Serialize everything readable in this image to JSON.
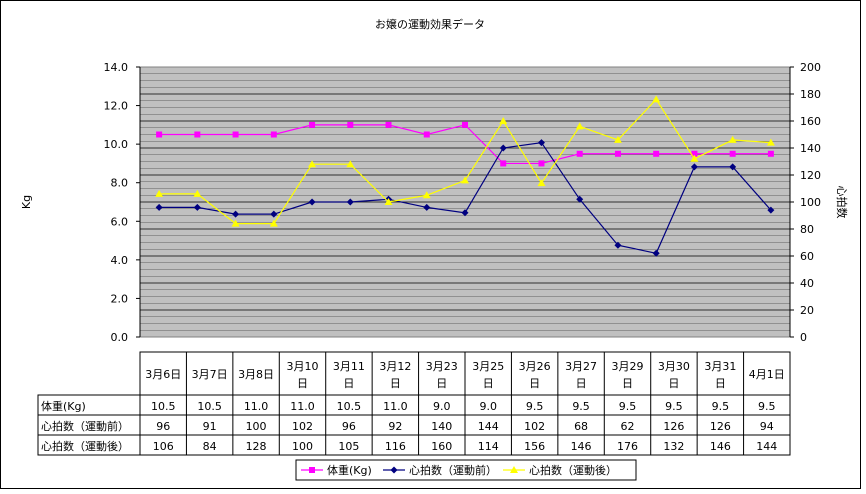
{
  "chart_data": {
    "type": "line",
    "title": "お嬢の運動効果データ",
    "ylabel": "Kg",
    "y2label": "心拍数",
    "ylim": [
      0,
      14
    ],
    "y2lim": [
      0,
      200
    ],
    "yticks": [
      "0.0",
      "2.0",
      "4.0",
      "6.0",
      "8.0",
      "10.0",
      "12.0",
      "14.0"
    ],
    "y2ticks": [
      "0",
      "20",
      "40",
      "60",
      "80",
      "100",
      "120",
      "140",
      "160",
      "180",
      "200"
    ],
    "grid": true,
    "legend_position": "bottom",
    "groups": [
      {
        "label": "3月6日",
        "x_steps": [
          0,
          1
        ],
        "labels": [
          "3月6日",
          ""
        ]
      },
      {
        "label": "3月7日",
        "x_steps": [
          2,
          3
        ],
        "labels": [
          "3月7日",
          ""
        ]
      },
      {
        "label": "3月8日",
        "x_steps": [
          4,
          5
        ],
        "labels": [
          "3月8日",
          ""
        ]
      },
      {
        "label": "3月10日",
        "x_steps": [
          6
        ],
        "labels": [
          "3月10",
          "日"
        ]
      },
      {
        "label": "3月11日",
        "x_steps": [
          7
        ],
        "labels": [
          "3月11",
          "日"
        ]
      },
      {
        "label": "3月12日",
        "x_steps": [
          8
        ],
        "labels": [
          "3月12",
          "日"
        ]
      },
      {
        "label": "3月23日",
        "x_steps": [
          9
        ],
        "labels": [
          "3月23",
          "日"
        ]
      },
      {
        "label": "3月25日",
        "x_steps": [
          10
        ],
        "labels": [
          "3月25",
          "日"
        ]
      },
      {
        "label": "3月26日",
        "x_steps": [
          11
        ],
        "labels": [
          "3月26",
          "日"
        ]
      },
      {
        "label": "3月27日",
        "x_steps": [
          12
        ],
        "labels": [
          "3月27",
          "日"
        ]
      },
      {
        "label": "3月29日",
        "x_steps": [
          13
        ],
        "labels": [
          "3月29",
          "日"
        ]
      },
      {
        "label": "3月30日",
        "x_steps": [
          14
        ],
        "labels": [
          "3月30",
          "日"
        ]
      },
      {
        "label": "3月31日",
        "x_steps": [
          15
        ],
        "labels": [
          "3月31",
          "日"
        ]
      },
      {
        "label": "4月1日",
        "x_steps": [
          16
        ],
        "labels": [
          "4月1日",
          ""
        ]
      }
    ],
    "series": [
      {
        "name": "体重(Kg)",
        "axis": "left",
        "color": "#ff00ff",
        "marker": "square",
        "values": [
          10.5,
          10.5,
          11.0,
          11.0,
          10.5,
          11.0,
          9.0,
          9.0,
          9.5,
          9.5,
          9.5,
          9.5,
          9.5,
          9.5
        ]
      },
      {
        "name": "心拍数（運動前）",
        "axis": "right",
        "color": "#000080",
        "marker": "diamond",
        "values": [
          96,
          91,
          100,
          102,
          96,
          92,
          140,
          144,
          102,
          68,
          62,
          126,
          126,
          94
        ]
      },
      {
        "name": "心拍数（運動後）",
        "axis": "right",
        "color": "#ffff00",
        "marker": "triangle",
        "values": [
          106,
          84,
          128,
          100,
          105,
          116,
          160,
          114,
          156,
          146,
          176,
          132,
          146,
          144
        ]
      }
    ]
  }
}
